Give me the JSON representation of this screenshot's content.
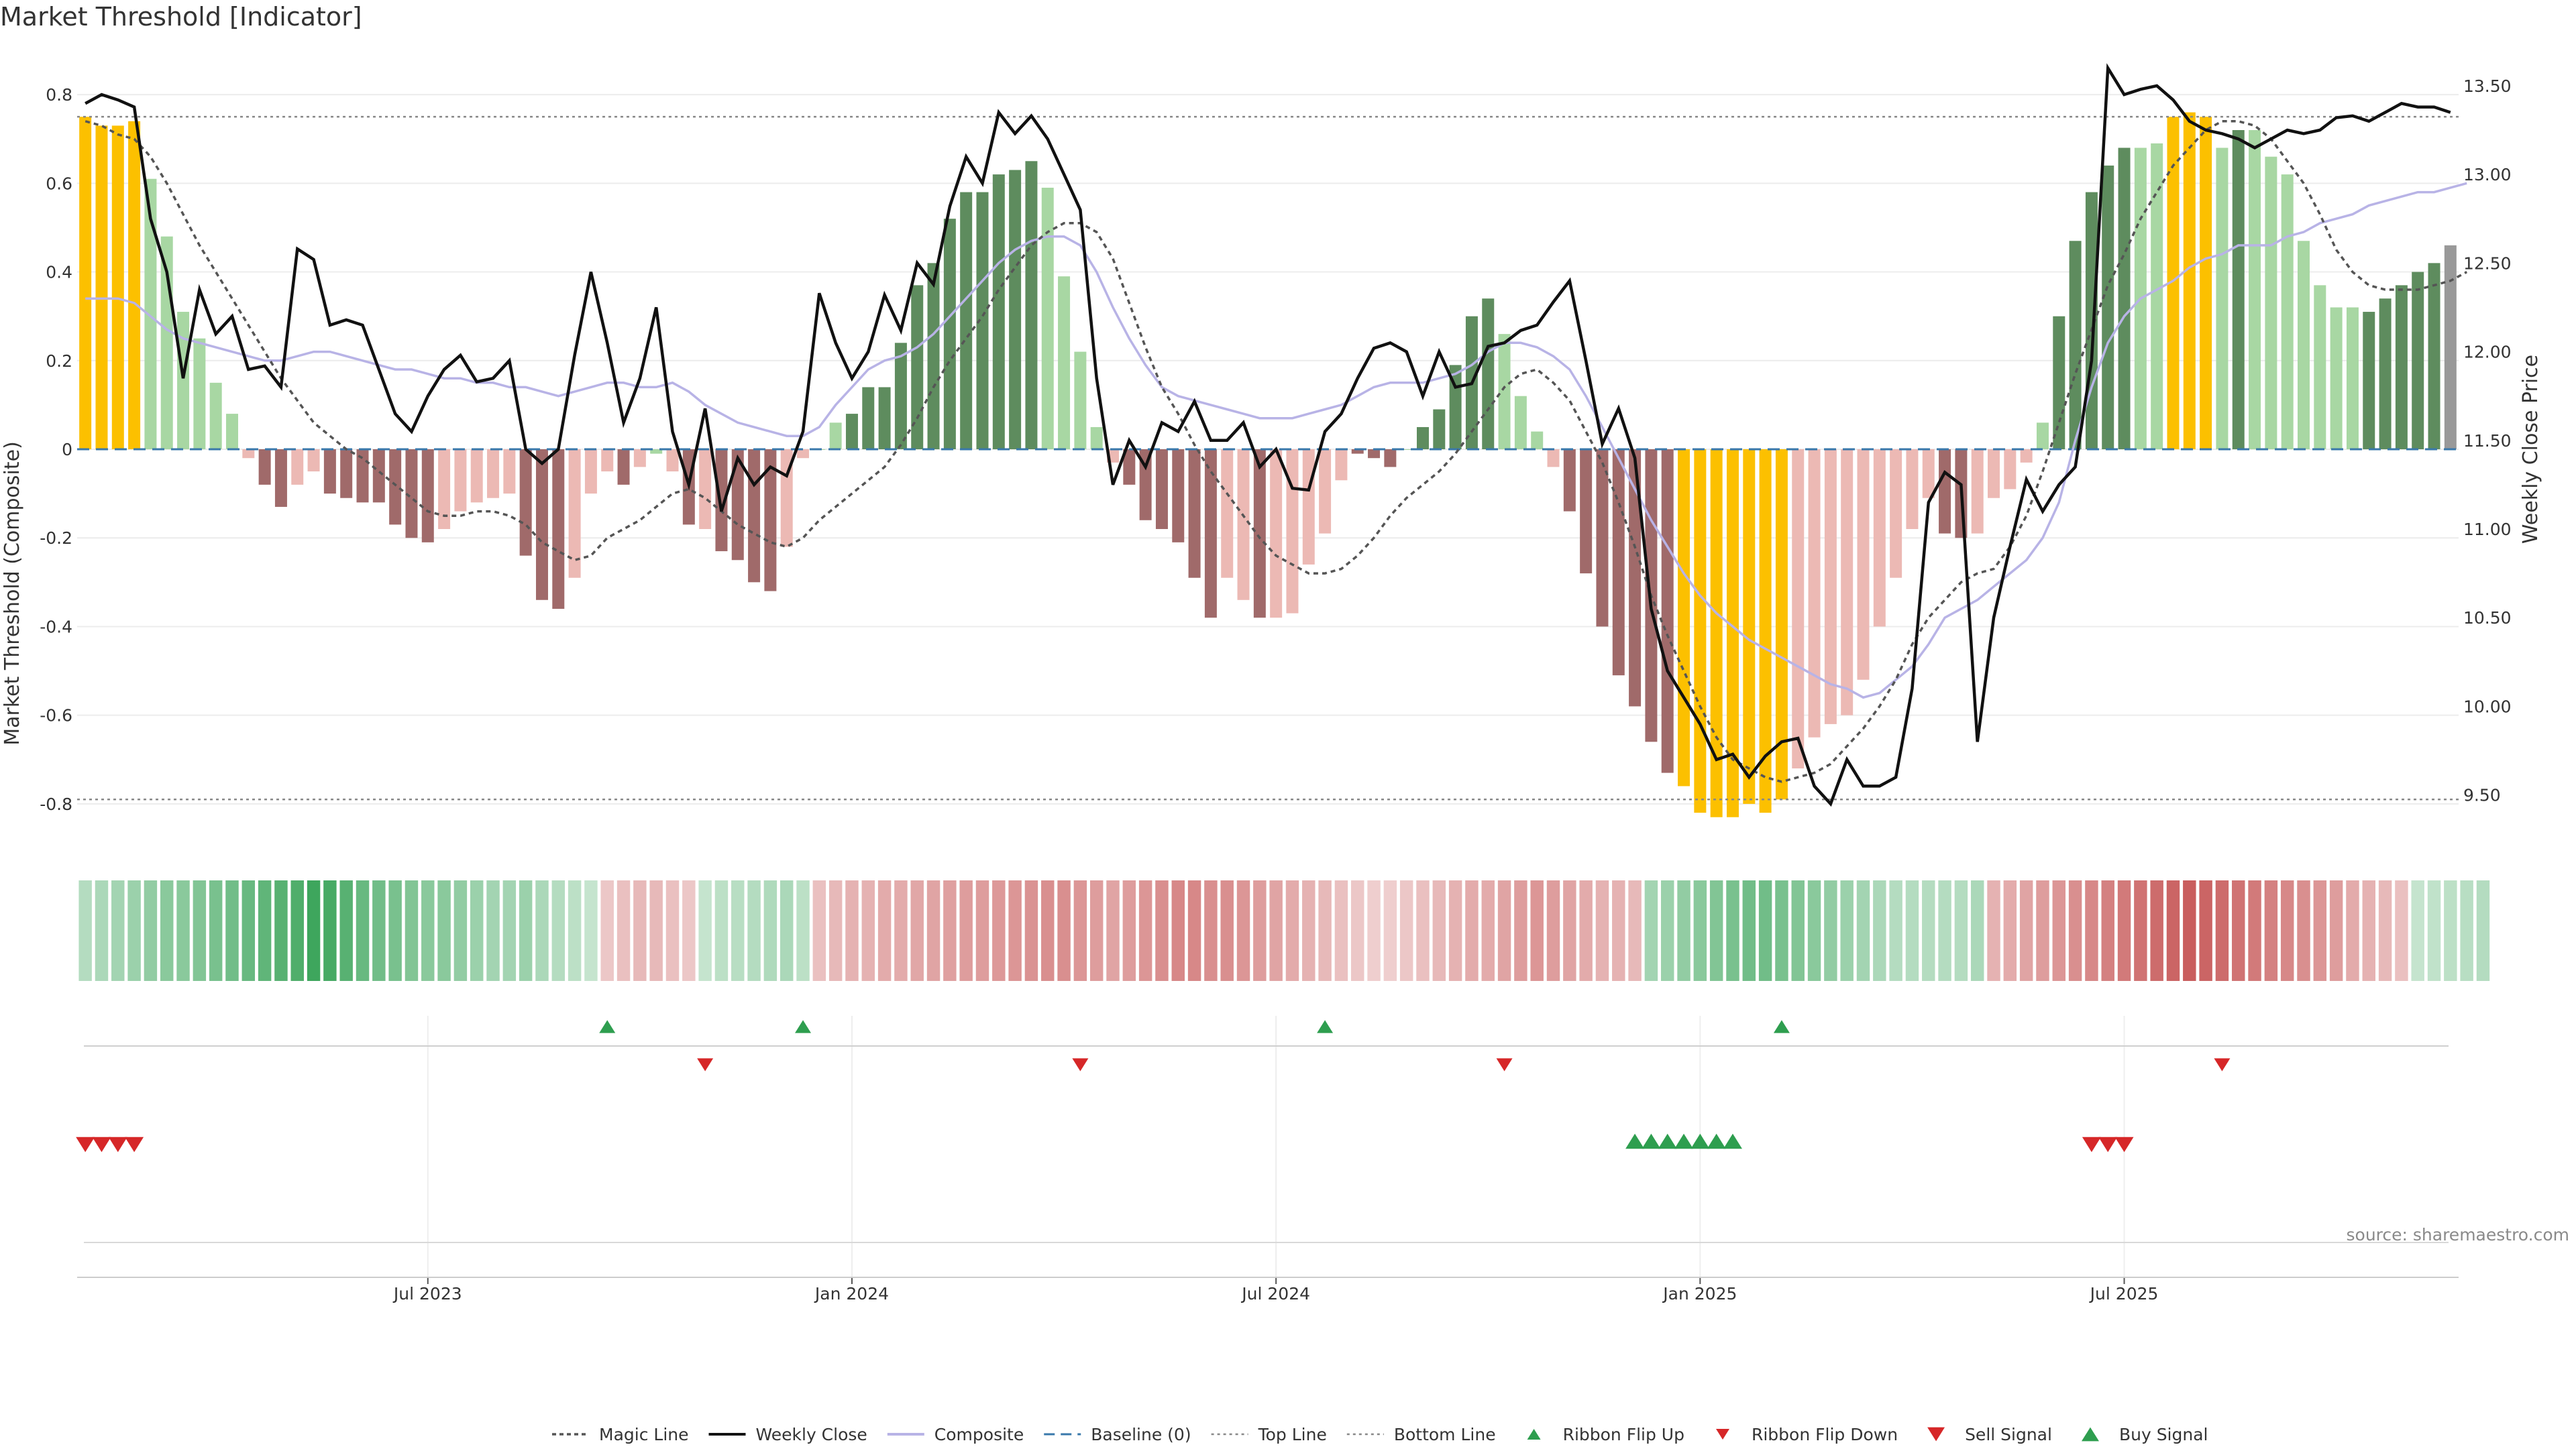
{
  "title": "Market Threshold [Indicator]",
  "source": "source: sharemaestro.com",
  "colors": {
    "strong_pos": "#5e8c5e",
    "weak_pos": "#a8d7a3",
    "strong_neg": "#a06a6a",
    "weak_neg": "#ecb9b4",
    "extreme": "#fcc000",
    "close": "#111111",
    "composite": "#b8b3e6",
    "magic": "#555555",
    "baseline": "#3978ab",
    "threshold": "#777777",
    "flip_up": "#2e9e4f",
    "flip_down": "#d62728"
  },
  "chart_data": {
    "type": "bar",
    "title": "Market Threshold [Indicator]",
    "ylabel_left": "Market Threshold (Composite)",
    "ylabel_right": "Weekly Close Price",
    "ylim_left": [
      -0.9,
      0.9
    ],
    "ylim_right": [
      9.2,
      13.7
    ],
    "yticks_left": [
      "0.8",
      "0.6",
      "0.4",
      "0.2",
      "0",
      "-0.2",
      "-0.4",
      "-0.6",
      "-0.8"
    ],
    "yticks_right": [
      "13.50",
      "13.00",
      "12.50",
      "12.00",
      "11.50",
      "11.00",
      "10.50",
      "10.00",
      "9.50"
    ],
    "xticks": [
      "Jul 2023",
      "Jan 2024",
      "Jul 2024",
      "Jan 2025",
      "Jul 2025"
    ],
    "xtick_positions": [
      21.5,
      47.5,
      73.5,
      99.5,
      125.5
    ],
    "top_line": 0.75,
    "bottom_line": -0.79,
    "baseline": 0,
    "bars": [
      0.75,
      0.73,
      0.73,
      0.74,
      0.61,
      0.48,
      0.31,
      0.25,
      0.15,
      0.08,
      -0.02,
      -0.08,
      -0.13,
      -0.08,
      -0.05,
      -0.1,
      -0.11,
      -0.12,
      -0.12,
      -0.17,
      -0.2,
      -0.21,
      -0.18,
      -0.14,
      -0.12,
      -0.11,
      -0.1,
      -0.24,
      -0.34,
      -0.36,
      -0.29,
      -0.1,
      -0.05,
      -0.08,
      -0.04,
      -0.01,
      -0.05,
      -0.17,
      -0.18,
      -0.23,
      -0.25,
      -0.3,
      -0.32,
      -0.22,
      -0.02,
      0,
      0.06,
      0.08,
      0.14,
      0.14,
      0.24,
      0.37,
      0.42,
      0.52,
      0.58,
      0.58,
      0.62,
      0.63,
      0.65,
      0.59,
      0.39,
      0.22,
      0.05,
      -0.03,
      -0.08,
      -0.16,
      -0.18,
      -0.21,
      -0.29,
      -0.38,
      -0.29,
      -0.34,
      -0.38,
      -0.38,
      -0.37,
      -0.26,
      -0.19,
      -0.07,
      -0.01,
      -0.02,
      -0.04,
      0,
      0.05,
      0.09,
      0.19,
      0.3,
      0.34,
      0.26,
      0.12,
      0.04,
      -0.04,
      -0.14,
      -0.28,
      -0.4,
      -0.51,
      -0.58,
      -0.66,
      -0.73,
      -0.76,
      -0.82,
      -0.83,
      -0.83,
      -0.8,
      -0.82,
      -0.79,
      -0.72,
      -0.65,
      -0.62,
      -0.6,
      -0.52,
      -0.4,
      -0.29,
      -0.18,
      -0.11,
      -0.19,
      -0.2,
      -0.19,
      -0.11,
      -0.09,
      -0.03,
      0.06,
      0.3,
      0.47,
      0.58,
      0.64,
      0.68,
      0.68,
      0.69,
      0.75,
      0.76,
      0.75,
      0.68,
      0.72,
      0.72,
      0.66,
      0.62,
      0.47,
      0.37,
      0.32,
      0.32,
      0.31,
      0.34,
      0.37,
      0.4,
      0.42,
      0.46
    ],
    "bar_colors": [
      "extreme",
      "extreme",
      "extreme",
      "extreme",
      "weak_pos",
      "weak_pos",
      "weak_pos",
      "weak_pos",
      "weak_pos",
      "weak_pos",
      "weak_neg",
      "strong_neg",
      "strong_neg",
      "weak_neg",
      "weak_neg",
      "strong_neg",
      "strong_neg",
      "strong_neg",
      "strong_neg",
      "strong_neg",
      "strong_neg",
      "strong_neg",
      "weak_neg",
      "weak_neg",
      "weak_neg",
      "weak_neg",
      "weak_neg",
      "strong_neg",
      "strong_neg",
      "strong_neg",
      "weak_neg",
      "weak_neg",
      "weak_neg",
      "strong_neg",
      "weak_neg",
      "weak_pos",
      "weak_neg",
      "strong_neg",
      "weak_neg",
      "strong_neg",
      "strong_neg",
      "strong_neg",
      "strong_neg",
      "weak_neg",
      "weak_neg",
      "weak_pos",
      "weak_pos",
      "strong_pos",
      "strong_pos",
      "strong_pos",
      "strong_pos",
      "strong_pos",
      "strong_pos",
      "strong_pos",
      "strong_pos",
      "strong_pos",
      "strong_pos",
      "strong_pos",
      "strong_pos",
      "weak_pos",
      "weak_pos",
      "weak_pos",
      "weak_pos",
      "weak_neg",
      "strong_neg",
      "strong_neg",
      "strong_neg",
      "strong_neg",
      "strong_neg",
      "strong_neg",
      "weak_neg",
      "weak_neg",
      "strong_neg",
      "weak_neg",
      "weak_neg",
      "weak_neg",
      "weak_neg",
      "weak_neg",
      "strong_neg",
      "strong_neg",
      "strong_neg",
      "weak_pos",
      "strong_pos",
      "strong_pos",
      "strong_pos",
      "strong_pos",
      "strong_pos",
      "weak_pos",
      "weak_pos",
      "weak_pos",
      "weak_neg",
      "strong_neg",
      "strong_neg",
      "strong_neg",
      "strong_neg",
      "strong_neg",
      "strong_neg",
      "strong_neg",
      "extreme",
      "extreme",
      "extreme",
      "extreme",
      "extreme",
      "extreme",
      "extreme",
      "weak_neg",
      "weak_neg",
      "weak_neg",
      "weak_neg",
      "weak_neg",
      "weak_neg",
      "weak_neg",
      "weak_neg",
      "weak_neg",
      "strong_neg",
      "strong_neg",
      "weak_neg",
      "weak_neg",
      "weak_neg",
      "weak_neg",
      "weak_pos",
      "strong_pos",
      "strong_pos",
      "strong_pos",
      "strong_pos",
      "strong_pos",
      "weak_pos",
      "weak_pos",
      "extreme",
      "extreme",
      "extreme",
      "weak_pos",
      "strong_pos",
      "weak_pos",
      "weak_pos",
      "weak_pos",
      "weak_pos",
      "weak_pos",
      "weak_pos",
      "weak_pos",
      "strong_pos",
      "strong_pos",
      "strong_pos",
      "strong_pos",
      "strong_pos"
    ],
    "weekly_close": [
      13.4,
      13.45,
      13.42,
      13.38,
      12.75,
      12.45,
      11.85,
      12.35,
      12.1,
      12.2,
      11.9,
      11.92,
      11.8,
      12.58,
      12.52,
      12.15,
      12.18,
      12.15,
      11.9,
      11.65,
      11.55,
      11.75,
      11.9,
      11.98,
      11.83,
      11.85,
      11.95,
      11.45,
      11.37,
      11.45,
      11.98,
      12.45,
      12.05,
      11.6,
      11.85,
      12.25,
      11.55,
      11.25,
      11.68,
      11.1,
      11.4,
      11.25,
      11.35,
      11.3,
      11.55,
      12.33,
      12.05,
      11.85,
      12.0,
      12.32,
      12.12,
      12.5,
      12.38,
      12.82,
      13.1,
      12.95,
      13.35,
      13.23,
      13.33,
      13.2,
      13.0,
      12.8,
      11.85,
      11.25,
      11.5,
      11.35,
      11.6,
      11.55,
      11.72,
      11.5,
      11.5,
      11.6,
      11.35,
      11.45,
      11.23,
      11.22,
      11.55,
      11.65,
      11.85,
      12.02,
      12.05,
      12.0,
      11.75,
      12.0,
      11.8,
      11.82,
      12.03,
      12.05,
      12.12,
      12.15,
      12.28,
      12.4,
      11.95,
      11.48,
      11.68,
      11.4,
      10.55,
      10.2,
      10.05,
      9.9,
      9.7,
      9.73,
      9.6,
      9.72,
      9.8,
      9.82,
      9.55,
      9.45,
      9.7,
      9.55,
      9.55,
      9.6,
      10.1,
      11.15,
      11.32,
      11.25,
      9.8,
      10.5,
      10.9,
      11.28,
      11.1,
      11.25,
      11.35,
      11.95,
      13.6,
      13.45,
      13.48,
      13.5,
      13.42,
      13.3,
      13.25,
      13.23,
      13.2,
      13.15,
      13.2,
      13.25,
      13.23,
      13.25,
      13.32,
      13.33,
      13.3,
      13.35,
      13.4,
      13.38,
      13.38,
      13.35
    ],
    "composite": [
      0.34,
      0.34,
      0.34,
      0.33,
      0.3,
      0.27,
      0.25,
      0.24,
      0.23,
      0.22,
      0.21,
      0.2,
      0.2,
      0.21,
      0.22,
      0.22,
      0.21,
      0.2,
      0.19,
      0.18,
      0.18,
      0.17,
      0.16,
      0.16,
      0.15,
      0.15,
      0.14,
      0.14,
      0.13,
      0.12,
      0.13,
      0.14,
      0.15,
      0.15,
      0.14,
      0.14,
      0.15,
      0.13,
      0.1,
      0.08,
      0.06,
      0.05,
      0.04,
      0.03,
      0.03,
      0.05,
      0.1,
      0.14,
      0.18,
      0.2,
      0.21,
      0.23,
      0.26,
      0.3,
      0.34,
      0.38,
      0.42,
      0.45,
      0.47,
      0.48,
      0.48,
      0.46,
      0.4,
      0.32,
      0.25,
      0.19,
      0.14,
      0.12,
      0.11,
      0.1,
      0.09,
      0.08,
      0.07,
      0.07,
      0.07,
      0.08,
      0.09,
      0.1,
      0.12,
      0.14,
      0.15,
      0.15,
      0.15,
      0.16,
      0.17,
      0.19,
      0.22,
      0.24,
      0.24,
      0.23,
      0.21,
      0.18,
      0.12,
      0.05,
      -0.02,
      -0.09,
      -0.16,
      -0.22,
      -0.28,
      -0.33,
      -0.37,
      -0.4,
      -0.43,
      -0.45,
      -0.47,
      -0.49,
      -0.51,
      -0.53,
      -0.54,
      -0.56,
      -0.55,
      -0.52,
      -0.49,
      -0.44,
      -0.38,
      -0.36,
      -0.34,
      -0.31,
      -0.28,
      -0.25,
      -0.2,
      -0.12,
      0.02,
      0.14,
      0.24,
      0.3,
      0.34,
      0.36,
      0.38,
      0.41,
      0.43,
      0.44,
      0.46,
      0.46,
      0.46,
      0.48,
      0.49,
      0.51,
      0.52,
      0.53,
      0.55,
      0.56,
      0.57,
      0.58,
      0.58,
      0.59,
      0.6
    ],
    "magic_line": [
      0.74,
      0.73,
      0.71,
      0.7,
      0.66,
      0.6,
      0.53,
      0.46,
      0.4,
      0.34,
      0.28,
      0.22,
      0.16,
      0.11,
      0.06,
      0.03,
      0,
      -0.02,
      -0.05,
      -0.08,
      -0.11,
      -0.14,
      -0.15,
      -0.15,
      -0.14,
      -0.14,
      -0.15,
      -0.17,
      -0.21,
      -0.23,
      -0.25,
      -0.24,
      -0.2,
      -0.18,
      -0.16,
      -0.13,
      -0.1,
      -0.09,
      -0.11,
      -0.14,
      -0.17,
      -0.19,
      -0.21,
      -0.22,
      -0.2,
      -0.16,
      -0.13,
      -0.1,
      -0.07,
      -0.04,
      0.01,
      0.07,
      0.14,
      0.2,
      0.25,
      0.3,
      0.36,
      0.41,
      0.46,
      0.49,
      0.51,
      0.51,
      0.49,
      0.43,
      0.33,
      0.23,
      0.14,
      0.08,
      0.01,
      -0.05,
      -0.1,
      -0.15,
      -0.2,
      -0.24,
      -0.26,
      -0.28,
      -0.28,
      -0.27,
      -0.24,
      -0.2,
      -0.15,
      -0.11,
      -0.08,
      -0.05,
      -0.01,
      0.04,
      0.09,
      0.14,
      0.17,
      0.18,
      0.15,
      0.11,
      0.04,
      -0.03,
      -0.12,
      -0.22,
      -0.33,
      -0.42,
      -0.5,
      -0.58,
      -0.65,
      -0.7,
      -0.72,
      -0.74,
      -0.75,
      -0.74,
      -0.73,
      -0.71,
      -0.67,
      -0.63,
      -0.58,
      -0.52,
      -0.44,
      -0.38,
      -0.34,
      -0.3,
      -0.28,
      -0.27,
      -0.22,
      -0.15,
      -0.05,
      0.06,
      0.17,
      0.27,
      0.37,
      0.44,
      0.52,
      0.58,
      0.64,
      0.68,
      0.72,
      0.74,
      0.74,
      0.73,
      0.7,
      0.65,
      0.6,
      0.53,
      0.45,
      0.4,
      0.37,
      0.36,
      0.36,
      0.36,
      0.37,
      0.38,
      0.4
    ],
    "ribbon": [
      0.2,
      0.25,
      0.3,
      0.35,
      0.4,
      0.45,
      0.45,
      0.5,
      0.55,
      0.6,
      0.65,
      0.7,
      0.75,
      0.8,
      0.9,
      0.85,
      0.75,
      0.65,
      0.6,
      0.55,
      0.5,
      0.45,
      0.45,
      0.4,
      0.35,
      0.3,
      0.3,
      0.35,
      0.25,
      0.2,
      0.15,
      0.1,
      -0.15,
      -0.2,
      -0.25,
      -0.25,
      -0.2,
      -0.15,
      0.1,
      0.15,
      0.18,
      0.2,
      0.22,
      0.25,
      0.15,
      -0.2,
      -0.25,
      -0.3,
      -0.3,
      -0.35,
      -0.35,
      -0.38,
      -0.4,
      -0.42,
      -0.45,
      -0.45,
      -0.48,
      -0.5,
      -0.52,
      -0.55,
      -0.55,
      -0.5,
      -0.45,
      -0.4,
      -0.45,
      -0.5,
      -0.55,
      -0.6,
      -0.6,
      -0.55,
      -0.55,
      -0.5,
      -0.45,
      -0.4,
      -0.35,
      -0.3,
      -0.25,
      -0.2,
      -0.15,
      -0.1,
      -0.1,
      -0.15,
      -0.2,
      -0.25,
      -0.3,
      -0.35,
      -0.35,
      -0.4,
      -0.45,
      -0.5,
      -0.45,
      -0.4,
      -0.35,
      -0.3,
      -0.3,
      -0.25,
      0.3,
      0.35,
      0.4,
      0.45,
      0.5,
      0.55,
      0.6,
      0.6,
      0.55,
      0.5,
      0.45,
      0.4,
      0.35,
      0.3,
      0.25,
      0.2,
      0.2,
      0.2,
      0.2,
      0.2,
      0.25,
      -0.3,
      -0.35,
      -0.4,
      -0.45,
      -0.5,
      -0.55,
      -0.6,
      -0.65,
      -0.7,
      -0.75,
      -0.8,
      -0.85,
      -0.9,
      -0.85,
      -0.8,
      -0.75,
      -0.7,
      -0.65,
      -0.6,
      -0.55,
      -0.5,
      -0.45,
      -0.35,
      -0.3,
      -0.25,
      -0.2,
      0.1,
      0.12,
      0.15,
      0.18,
      0.2
    ],
    "ribbon_flip_up": [
      32,
      44,
      76,
      104
    ],
    "ribbon_flip_down": [
      38,
      61,
      87,
      131
    ],
    "sell_signal": [
      0,
      1,
      2,
      3,
      123,
      124,
      125
    ],
    "buy_signal": [
      95,
      96,
      97,
      98,
      99,
      100,
      101
    ]
  },
  "legend": [
    {
      "key": "magic",
      "label": "Magic Line"
    },
    {
      "key": "close",
      "label": "Weekly Close"
    },
    {
      "key": "composite",
      "label": "Composite"
    },
    {
      "key": "baseline",
      "label": "Baseline (0)"
    },
    {
      "key": "top",
      "label": "Top Line"
    },
    {
      "key": "bottom",
      "label": "Bottom Line"
    },
    {
      "key": "flip_up",
      "label": "Ribbon Flip Up"
    },
    {
      "key": "flip_down",
      "label": "Ribbon Flip Down"
    },
    {
      "key": "sell",
      "label": "Sell Signal"
    },
    {
      "key": "buy",
      "label": "Buy Signal"
    }
  ]
}
